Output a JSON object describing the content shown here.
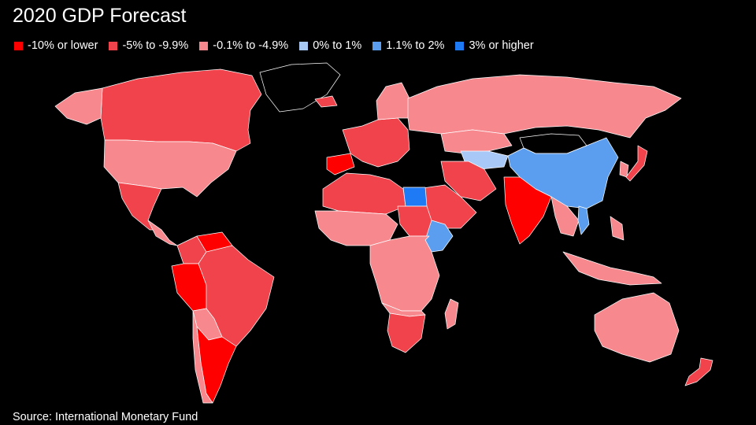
{
  "title": "2020 GDP Forecast",
  "source": "Source: International Monetary Fund",
  "legend": [
    {
      "key": "c1",
      "label": "-10% or lower",
      "color": "#ff0000"
    },
    {
      "key": "c2",
      "label": "-5% to -9.9%",
      "color": "#f0434b"
    },
    {
      "key": "c3",
      "label": "-0.1% to -4.9%",
      "color": "#f7888e"
    },
    {
      "key": "c4",
      "label": "0% to 1%",
      "color": "#a8c8f8"
    },
    {
      "key": "c5",
      "label": "1.1% to 2%",
      "color": "#5b9ef0"
    },
    {
      "key": "c6",
      "label": "3% or higher",
      "color": "#1f7af5"
    }
  ],
  "colors": {
    "no_data": "#000000",
    "border": "#ffffff"
  },
  "regions": [
    {
      "name": "Canada",
      "class": "c2"
    },
    {
      "name": "Alaska (United States)",
      "class": "c3"
    },
    {
      "name": "United States",
      "class": "c3"
    },
    {
      "name": "Greenland",
      "class": "no_data"
    },
    {
      "name": "Mexico",
      "class": "c2"
    },
    {
      "name": "Colombia",
      "class": "c2"
    },
    {
      "name": "Venezuela",
      "class": "c1"
    },
    {
      "name": "Peru",
      "class": "c1"
    },
    {
      "name": "Bolivia",
      "class": "c3"
    },
    {
      "name": "Brazil",
      "class": "c2"
    },
    {
      "name": "Chile",
      "class": "c3"
    },
    {
      "name": "Argentina",
      "class": "c1"
    },
    {
      "name": "Iceland",
      "class": "c2"
    },
    {
      "name": "Spain",
      "class": "c1"
    },
    {
      "name": "Europe",
      "class": "c2"
    },
    {
      "name": "Scandinavia",
      "class": "c3"
    },
    {
      "name": "Russia",
      "class": "c3"
    },
    {
      "name": "Kazakhstan",
      "class": "c3"
    },
    {
      "name": "Central Asia",
      "class": "c4"
    },
    {
      "name": "Mongolia",
      "class": "no_data"
    },
    {
      "name": "China",
      "class": "c5"
    },
    {
      "name": "Japan",
      "class": "c2"
    },
    {
      "name": "South Korea",
      "class": "c3"
    },
    {
      "name": "India",
      "class": "c1"
    },
    {
      "name": "Iran",
      "class": "c2"
    },
    {
      "name": "Saudi Arabia",
      "class": "c2"
    },
    {
      "name": "Vietnam",
      "class": "c5"
    },
    {
      "name": "Southeast Asia",
      "class": "c3"
    },
    {
      "name": "Indonesia",
      "class": "c3"
    },
    {
      "name": "Australia",
      "class": "c3"
    },
    {
      "name": "New Zealand",
      "class": "c2"
    },
    {
      "name": "North Africa",
      "class": "c2"
    },
    {
      "name": "Egypt",
      "class": "c6"
    },
    {
      "name": "Sudan",
      "class": "c2"
    },
    {
      "name": "Ethiopia",
      "class": "c5"
    },
    {
      "name": "Central Africa",
      "class": "c3"
    },
    {
      "name": "South Africa",
      "class": "c2"
    },
    {
      "name": "Madagascar",
      "class": "c3"
    }
  ]
}
